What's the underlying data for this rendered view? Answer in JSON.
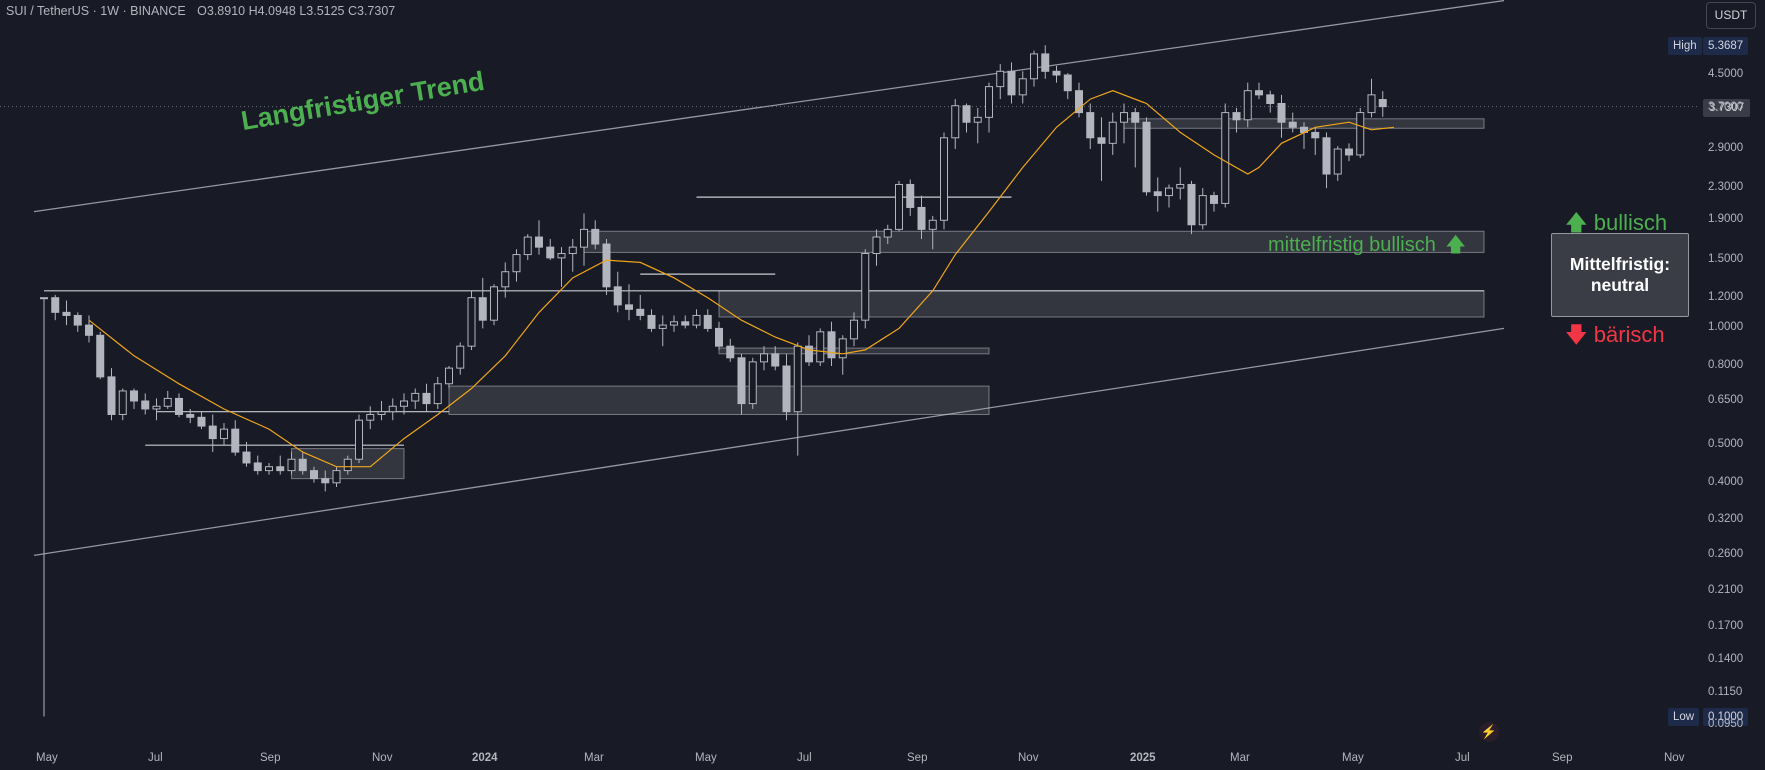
{
  "header": {
    "symbol": "SUI / TetherUS · 1W · BINANCE",
    "ohlc": "O3.8910 H4.0948 L3.5125 C3.7307"
  },
  "currency_button": "USDT",
  "high_badge": {
    "label": "High",
    "value": "5.3687"
  },
  "low_badge": {
    "label": "Low",
    "value": "0.1000"
  },
  "last_price": "3.7307",
  "annotations": {
    "trend": "Langfristiger Trend",
    "mid_bullish": "mittelfristig bullisch",
    "box_line1": "Mittelfristig:",
    "box_line2": "neutral",
    "bullish": "bullisch",
    "bearish": "bärisch"
  },
  "colors": {
    "background": "#181a25",
    "candle": "#b2b5be",
    "ma": "#f0a61a",
    "bull_green": "#4caf50",
    "bear_red": "#f23645"
  },
  "chart_data": {
    "type": "candlestick",
    "interval": "1W",
    "y_scale": "log",
    "y_ticks": [
      "4.5000",
      "3.7000",
      "2.9000",
      "2.3000",
      "1.9000",
      "1.5000",
      "1.2000",
      "1.0000",
      "0.8000",
      "0.6500",
      "0.5000",
      "0.4000",
      "0.3200",
      "0.2600",
      "0.2100",
      "0.1700",
      "0.1400",
      "0.1150",
      "0.0950"
    ],
    "x_ticks": [
      "May",
      "Jul",
      "Sep",
      "Nov",
      "2024",
      "Mar",
      "May",
      "Jul",
      "Sep",
      "Nov",
      "2025",
      "Mar",
      "May",
      "Jul",
      "Sep",
      "Nov"
    ],
    "candles": [
      [
        1.2,
        1.2,
        0.1,
        1.2
      ],
      [
        1.2,
        1.22,
        1.05,
        1.1
      ],
      [
        1.1,
        1.18,
        1.02,
        1.08
      ],
      [
        1.08,
        1.1,
        0.98,
        1.02
      ],
      [
        1.02,
        1.08,
        0.92,
        0.96
      ],
      [
        0.96,
        0.98,
        0.74,
        0.75
      ],
      [
        0.75,
        0.79,
        0.58,
        0.6
      ],
      [
        0.6,
        0.7,
        0.58,
        0.69
      ],
      [
        0.69,
        0.7,
        0.62,
        0.65
      ],
      [
        0.65,
        0.68,
        0.6,
        0.62
      ],
      [
        0.62,
        0.66,
        0.58,
        0.63
      ],
      [
        0.63,
        0.69,
        0.62,
        0.66
      ],
      [
        0.66,
        0.68,
        0.59,
        0.6
      ],
      [
        0.6,
        0.62,
        0.57,
        0.59
      ],
      [
        0.59,
        0.61,
        0.55,
        0.56
      ],
      [
        0.56,
        0.6,
        0.48,
        0.52
      ],
      [
        0.52,
        0.57,
        0.5,
        0.55
      ],
      [
        0.55,
        0.58,
        0.47,
        0.48
      ],
      [
        0.48,
        0.51,
        0.44,
        0.45
      ],
      [
        0.45,
        0.47,
        0.42,
        0.43
      ],
      [
        0.43,
        0.45,
        0.42,
        0.44
      ],
      [
        0.44,
        0.47,
        0.42,
        0.43
      ],
      [
        0.43,
        0.48,
        0.42,
        0.46
      ],
      [
        0.46,
        0.48,
        0.42,
        0.43
      ],
      [
        0.43,
        0.44,
        0.4,
        0.41
      ],
      [
        0.41,
        0.43,
        0.38,
        0.4
      ],
      [
        0.4,
        0.44,
        0.39,
        0.43
      ],
      [
        0.43,
        0.47,
        0.42,
        0.46
      ],
      [
        0.46,
        0.6,
        0.45,
        0.58
      ],
      [
        0.58,
        0.63,
        0.55,
        0.6
      ],
      [
        0.6,
        0.65,
        0.58,
        0.61
      ],
      [
        0.61,
        0.66,
        0.58,
        0.63
      ],
      [
        0.63,
        0.68,
        0.6,
        0.65
      ],
      [
        0.65,
        0.7,
        0.62,
        0.68
      ],
      [
        0.68,
        0.72,
        0.61,
        0.64
      ],
      [
        0.64,
        0.75,
        0.62,
        0.72
      ],
      [
        0.72,
        0.8,
        0.7,
        0.79
      ],
      [
        0.79,
        0.92,
        0.76,
        0.9
      ],
      [
        0.9,
        1.25,
        0.88,
        1.2
      ],
      [
        1.2,
        1.35,
        1.0,
        1.05
      ],
      [
        1.05,
        1.3,
        1.02,
        1.28
      ],
      [
        1.28,
        1.48,
        1.2,
        1.4
      ],
      [
        1.4,
        1.6,
        1.32,
        1.55
      ],
      [
        1.55,
        1.75,
        1.5,
        1.72
      ],
      [
        1.72,
        1.9,
        1.55,
        1.62
      ],
      [
        1.62,
        1.7,
        1.5,
        1.52
      ],
      [
        1.52,
        1.62,
        1.28,
        1.56
      ],
      [
        1.56,
        1.7,
        1.4,
        1.62
      ],
      [
        1.62,
        1.98,
        1.45,
        1.8
      ],
      [
        1.8,
        1.9,
        1.6,
        1.65
      ],
      [
        1.65,
        1.7,
        1.22,
        1.28
      ],
      [
        1.28,
        1.4,
        1.1,
        1.15
      ],
      [
        1.15,
        1.3,
        1.05,
        1.12
      ],
      [
        1.12,
        1.22,
        1.05,
        1.08
      ],
      [
        1.08,
        1.12,
        0.98,
        1.0
      ],
      [
        1.0,
        1.08,
        0.9,
        1.02
      ],
      [
        1.02,
        1.08,
        0.98,
        1.04
      ],
      [
        1.04,
        1.08,
        1.0,
        1.02
      ],
      [
        1.02,
        1.12,
        1.0,
        1.08
      ],
      [
        1.08,
        1.12,
        0.98,
        1.0
      ],
      [
        1.0,
        1.04,
        0.88,
        0.9
      ],
      [
        0.9,
        0.94,
        0.82,
        0.84
      ],
      [
        0.84,
        0.86,
        0.6,
        0.64
      ],
      [
        0.64,
        0.84,
        0.62,
        0.82
      ],
      [
        0.82,
        0.9,
        0.78,
        0.86
      ],
      [
        0.86,
        0.9,
        0.78,
        0.8
      ],
      [
        0.8,
        0.86,
        0.58,
        0.61
      ],
      [
        0.61,
        0.92,
        0.47,
        0.9
      ],
      [
        0.9,
        0.96,
        0.8,
        0.82
      ],
      [
        0.82,
        1.0,
        0.8,
        0.98
      ],
      [
        0.98,
        1.04,
        0.8,
        0.84
      ],
      [
        0.84,
        0.96,
        0.76,
        0.94
      ],
      [
        0.94,
        1.1,
        0.9,
        1.05
      ],
      [
        1.05,
        1.6,
        1.0,
        1.56
      ],
      [
        1.56,
        1.8,
        1.45,
        1.72
      ],
      [
        1.72,
        1.85,
        1.65,
        1.8
      ],
      [
        1.8,
        2.4,
        1.78,
        2.35
      ],
      [
        2.35,
        2.42,
        1.95,
        2.05
      ],
      [
        2.05,
        2.2,
        1.7,
        1.8
      ],
      [
        1.8,
        1.95,
        1.6,
        1.9
      ],
      [
        1.9,
        3.2,
        1.8,
        3.1
      ],
      [
        3.1,
        3.9,
        2.9,
        3.75
      ],
      [
        3.75,
        3.8,
        3.2,
        3.4
      ],
      [
        3.4,
        3.7,
        3.0,
        3.5
      ],
      [
        3.5,
        4.3,
        3.2,
        4.2
      ],
      [
        4.2,
        4.8,
        3.9,
        4.6
      ],
      [
        4.6,
        4.85,
        3.8,
        4.0
      ],
      [
        4.0,
        4.6,
        3.8,
        4.4
      ],
      [
        4.4,
        5.2,
        4.2,
        5.1
      ],
      [
        5.1,
        5.37,
        4.4,
        4.6
      ],
      [
        4.6,
        4.75,
        4.3,
        4.5
      ],
      [
        4.5,
        4.55,
        3.9,
        4.1
      ],
      [
        4.1,
        4.3,
        3.5,
        3.6
      ],
      [
        3.6,
        3.8,
        2.9,
        3.1
      ],
      [
        3.1,
        3.5,
        2.4,
        3.0
      ],
      [
        3.0,
        3.6,
        2.8,
        3.4
      ],
      [
        3.4,
        3.8,
        3.0,
        3.6
      ],
      [
        3.6,
        3.7,
        2.6,
        3.4
      ],
      [
        3.4,
        3.5,
        2.2,
        2.25
      ],
      [
        2.25,
        2.45,
        2.0,
        2.2
      ],
      [
        2.2,
        2.35,
        2.05,
        2.3
      ],
      [
        2.3,
        2.6,
        2.15,
        2.35
      ],
      [
        2.35,
        2.4,
        1.75,
        1.85
      ],
      [
        1.85,
        2.3,
        1.8,
        2.2
      ],
      [
        2.2,
        2.25,
        2.0,
        2.1
      ],
      [
        2.1,
        3.8,
        2.05,
        3.6
      ],
      [
        3.6,
        3.7,
        3.2,
        3.45
      ],
      [
        3.45,
        4.3,
        3.3,
        4.1
      ],
      [
        4.1,
        4.3,
        3.9,
        4.0
      ],
      [
        4.0,
        4.1,
        3.6,
        3.8
      ],
      [
        3.8,
        4.0,
        3.1,
        3.4
      ],
      [
        3.4,
        3.6,
        3.2,
        3.3
      ],
      [
        3.3,
        3.4,
        2.9,
        3.2
      ],
      [
        3.2,
        3.3,
        2.8,
        3.1
      ],
      [
        3.1,
        3.2,
        2.3,
        2.5
      ],
      [
        2.5,
        2.95,
        2.4,
        2.9
      ],
      [
        2.9,
        3.0,
        2.7,
        2.8
      ],
      [
        2.8,
        3.7,
        2.75,
        3.6
      ],
      [
        3.6,
        4.4,
        3.5,
        4.0
      ],
      [
        3.89,
        4.09,
        3.51,
        3.73
      ]
    ],
    "ma_line": [
      [
        4,
        1.05
      ],
      [
        8,
        0.85
      ],
      [
        12,
        0.72
      ],
      [
        16,
        0.62
      ],
      [
        20,
        0.55
      ],
      [
        23,
        0.48
      ],
      [
        26,
        0.44
      ],
      [
        29,
        0.44
      ],
      [
        32,
        0.52
      ],
      [
        35,
        0.6
      ],
      [
        38,
        0.7
      ],
      [
        41,
        0.85
      ],
      [
        44,
        1.1
      ],
      [
        47,
        1.35
      ],
      [
        50,
        1.5
      ],
      [
        53,
        1.48
      ],
      [
        56,
        1.35
      ],
      [
        59,
        1.2
      ],
      [
        62,
        1.05
      ],
      [
        65,
        0.95
      ],
      [
        68,
        0.88
      ],
      [
        71,
        0.86
      ],
      [
        73,
        0.88
      ],
      [
        76,
        1.0
      ],
      [
        79,
        1.25
      ],
      [
        81,
        1.55
      ],
      [
        84,
        2.0
      ],
      [
        87,
        2.6
      ],
      [
        90,
        3.3
      ],
      [
        93,
        3.9
      ],
      [
        95,
        4.1
      ],
      [
        98,
        3.8
      ],
      [
        101,
        3.2
      ],
      [
        104,
        2.8
      ],
      [
        107,
        2.5
      ],
      [
        108,
        2.6
      ],
      [
        110,
        3.0
      ],
      [
        113,
        3.3
      ],
      [
        116,
        3.4
      ],
      [
        118,
        3.25
      ],
      [
        120,
        3.3
      ]
    ],
    "zones": [
      {
        "x0": 48,
        "x1": 128,
        "y0": 1.57,
        "y1": 1.78
      },
      {
        "x0": 36,
        "x1": 84,
        "y0": 0.6,
        "y1": 0.71
      },
      {
        "x0": 60,
        "x1": 128,
        "y0": 1.07,
        "y1": 1.25
      },
      {
        "x0": 60,
        "x1": 84,
        "y0": 0.86,
        "y1": 0.89
      },
      {
        "x0": 96,
        "x1": 128,
        "y0": 3.28,
        "y1": 3.47
      },
      {
        "x0": 22,
        "x1": 32,
        "y0": 0.41,
        "y1": 0.49
      }
    ],
    "levels": [
      {
        "x0": 0,
        "x1": 128,
        "y": 1.25
      },
      {
        "x0": 58,
        "x1": 86,
        "y": 2.18
      },
      {
        "x0": 53,
        "x1": 65,
        "y": 1.38
      },
      {
        "x0": 10,
        "x1": 36,
        "y": 0.61
      },
      {
        "x0": 9,
        "x1": 32,
        "y": 0.5
      }
    ],
    "channel": {
      "upper": [
        [
          0,
          2.0
        ],
        [
          128,
          7.0
        ]
      ],
      "lower": [
        [
          0,
          0.26
        ],
        [
          128,
          1.0
        ]
      ]
    }
  }
}
